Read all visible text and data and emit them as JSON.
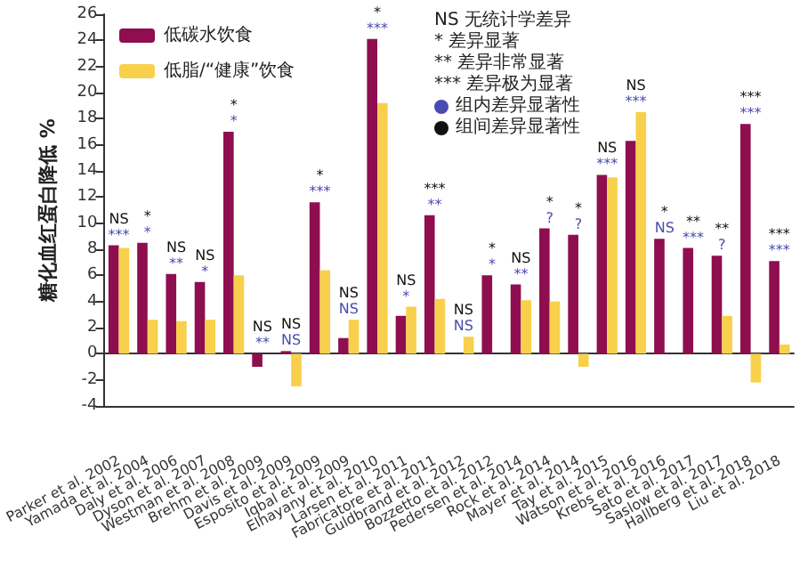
{
  "chart_data": {
    "type": "bar",
    "ylabel": "糖化血红蛋白降低 %",
    "categories": [
      "Parker et al. 2002",
      "Yamada et al. 2004",
      "Daly et al. 2006",
      "Dyson et al. 2007",
      "Westman et al. 2008",
      "Brehm et al. 2009",
      "Davis et al. 2009",
      "Esposito et al. 2009",
      "Iqbal et al. 2009",
      "Elhayany et al. 2010",
      "Larsen et al. 2011",
      "Fabricatore et al. 2011",
      "Guldbrand et al. 2012",
      "Bozzetto et al. 2012",
      "Pedersen et al. 2014",
      "Rock et al. 2014",
      "Mayer et al. 2014",
      "Tay et al. 2015",
      "Watson et al. 2016",
      "Krebs et al. 2016",
      "Sato et al. 2017",
      "Saslow et al. 2017",
      "Hallberg et al. 2018",
      "Liu et al. 2018"
    ],
    "series": [
      {
        "name": "低碳水饮食",
        "color": "#8e0e4f",
        "values": [
          8.3,
          8.5,
          6.1,
          5.5,
          17.0,
          -1.0,
          0.2,
          11.6,
          1.2,
          24.1,
          2.9,
          10.6,
          null,
          6.0,
          5.3,
          9.6,
          9.1,
          13.7,
          16.3,
          8.8,
          8.1,
          7.5,
          17.6,
          7.1
        ]
      },
      {
        "name": "低脂/“健康”饮食",
        "color": "#f8d04c",
        "values": [
          8.1,
          2.6,
          2.5,
          2.6,
          6.0,
          null,
          -2.5,
          6.4,
          2.6,
          19.2,
          3.6,
          4.2,
          1.3,
          null,
          4.1,
          4.0,
          -1.0,
          13.5,
          18.5,
          null,
          null,
          2.9,
          -2.2,
          0.7
        ]
      }
    ],
    "ylim": [
      -4,
      26
    ],
    "yticks": [
      -4,
      -2,
      0,
      2,
      4,
      6,
      8,
      10,
      12,
      14,
      16,
      18,
      20,
      22,
      24,
      26
    ],
    "legend": "top left",
    "annotations": [
      "NS 无统计学差异",
      "* 差异显著",
      "** 差异非常显著",
      "*** 差异极为显著",
      "组内差异显著性",
      "组间差异显著性",
      {
        "text": "***",
        "x": "Parker et al. 2002",
        "y": 8.3
      },
      {
        "text": "NS",
        "x": "Parker et al. 2002",
        "y": 8.3
      },
      {
        "text": "*",
        "x": "Yamada et al. 2004",
        "y": 8.5
      },
      {
        "text": "*",
        "x": "Yamada et al. 2004",
        "y": 8.5
      },
      {
        "text": "**",
        "x": "Daly et al. 2006",
        "y": 6.1
      },
      {
        "text": "NS",
        "x": "Daly et al. 2006",
        "y": 6.1
      },
      {
        "text": "*",
        "x": "Dyson et al. 2007",
        "y": 5.5
      },
      {
        "text": "NS",
        "x": "Dyson et al. 2007",
        "y": 5.5
      },
      {
        "text": "*",
        "x": "Westman et al. 2008",
        "y": 17.0
      },
      {
        "text": "*",
        "x": "Westman et al. 2008",
        "y": 17.0
      },
      {
        "text": "**",
        "x": "Brehm et al. 2009",
        "y": 0
      },
      {
        "text": "NS",
        "x": "Brehm et al. 2009",
        "y": 0
      },
      {
        "text": "NS",
        "x": "Davis et al. 2009",
        "y": 0.2
      },
      {
        "text": "NS",
        "x": "Davis et al. 2009",
        "y": 0.2
      },
      {
        "text": "***",
        "x": "Esposito et al. 2009",
        "y": 11.6
      },
      {
        "text": "*",
        "x": "Esposito et al. 2009",
        "y": 11.6
      },
      {
        "text": "NS",
        "x": "Iqbal et al. 2009",
        "y": 2.6
      },
      {
        "text": "NS",
        "x": "Iqbal et al. 2009",
        "y": 2.6
      },
      {
        "text": "***",
        "x": "Elhayany et al. 2010",
        "y": 24.1
      },
      {
        "text": "*",
        "x": "Elhayany et al. 2010",
        "y": 24.1
      },
      {
        "text": "*",
        "x": "Larsen et al. 2011",
        "y": 3.6
      },
      {
        "text": "NS",
        "x": "Larsen et al. 2011",
        "y": 3.6
      },
      {
        "text": "**",
        "x": "Fabricatore et al. 2011",
        "y": 10.6
      },
      {
        "text": "***",
        "x": "Fabricatore et al. 2011",
        "y": 10.6
      },
      {
        "text": "NS",
        "x": "Guldbrand et al. 2012",
        "y": 1.3
      },
      {
        "text": "NS",
        "x": "Guldbrand et al. 2012",
        "y": 1.3
      },
      {
        "text": "*",
        "x": "Bozzetto et al. 2012",
        "y": 6.0
      },
      {
        "text": "*",
        "x": "Bozzetto et al. 2012",
        "y": 6.0
      },
      {
        "text": "**",
        "x": "Pedersen et al. 2014",
        "y": 5.3
      },
      {
        "text": "NS",
        "x": "Pedersen et al. 2014",
        "y": 5.3
      },
      {
        "text": "?",
        "x": "Rock et al. 2014",
        "y": 9.6
      },
      {
        "text": "*",
        "x": "Rock et al. 2014",
        "y": 9.6
      },
      {
        "text": "?",
        "x": "Mayer et al. 2014",
        "y": 9.1
      },
      {
        "text": "*",
        "x": "Mayer et al. 2014",
        "y": 9.1
      },
      {
        "text": "***",
        "x": "Tay et al. 2015",
        "y": 13.7
      },
      {
        "text": "NS",
        "x": "Tay et al. 2015",
        "y": 13.7
      },
      {
        "text": "***",
        "x": "Watson et al. 2016",
        "y": 18.5
      },
      {
        "text": "NS",
        "x": "Watson et al. 2016",
        "y": 18.5
      },
      {
        "text": "NS",
        "x": "Krebs et al. 2016",
        "y": 8.8
      },
      {
        "text": "*",
        "x": "Krebs et al. 2016",
        "y": 8.8
      },
      {
        "text": "***",
        "x": "Sato et al. 2017",
        "y": 8.1
      },
      {
        "text": "**",
        "x": "Sato et al. 2017",
        "y": 8.1
      },
      {
        "text": "?",
        "x": "Saslow et al. 2017",
        "y": 7.5
      },
      {
        "text": "**",
        "x": "Saslow et al. 2017",
        "y": 7.5
      },
      {
        "text": "***",
        "x": "Hallberg et al. 2018",
        "y": 17.6
      },
      {
        "text": "***",
        "x": "Hallberg et al. 2018",
        "y": 17.6
      },
      {
        "text": "***",
        "x": "Liu et al. 2018",
        "y": 7.1
      },
      {
        "text": "***",
        "x": "Liu et al. 2018",
        "y": 7.1
      }
    ]
  }
}
